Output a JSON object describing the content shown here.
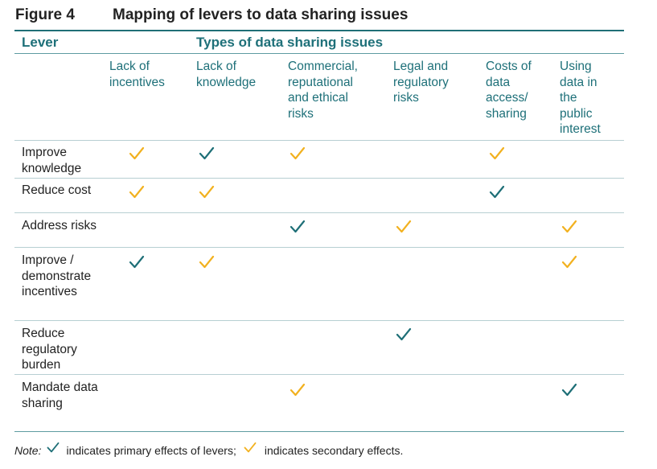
{
  "figure": {
    "label": "Figure 4",
    "title": "Mapping of levers to data sharing issues"
  },
  "header": {
    "lever": "Lever",
    "types": "Types of data sharing issues"
  },
  "columns": [
    "Lack of\nincentives",
    "Lack of\nknowledge",
    "Commercial,\nreputational\nand ethical\nrisks",
    "Legal and\nregulatory\nrisks",
    "Costs of\ndata\naccess/\nsharing",
    "Using\ndata in\nthe\npublic\ninterest"
  ],
  "rows": [
    {
      "label": "Improve\nknowledge",
      "marks": [
        "secondary",
        "primary",
        "secondary",
        "",
        "secondary",
        ""
      ]
    },
    {
      "label": "Reduce cost",
      "marks": [
        "secondary",
        "secondary",
        "",
        "",
        "primary",
        ""
      ]
    },
    {
      "label": "Address risks",
      "marks": [
        "",
        "",
        "primary",
        "secondary",
        "",
        "secondary"
      ]
    },
    {
      "label": "Improve /\ndemonstrate\nincentives",
      "marks": [
        "primary",
        "secondary",
        "",
        "",
        "",
        "secondary"
      ]
    },
    {
      "label": "Reduce\nregulatory\nburden",
      "marks": [
        "",
        "",
        "",
        "primary",
        "",
        ""
      ]
    },
    {
      "label": "Mandate data\nsharing",
      "marks": [
        "",
        "",
        "secondary",
        "",
        "",
        "primary"
      ]
    }
  ],
  "note": {
    "label": "Note:",
    "primary_text": "indicates primary effects of levers;",
    "secondary_text": "indicates secondary effects."
  },
  "colors": {
    "primary_tick": "#1e6f77",
    "secondary_tick": "#f2b11f",
    "heading_teal": "#1e7079"
  }
}
